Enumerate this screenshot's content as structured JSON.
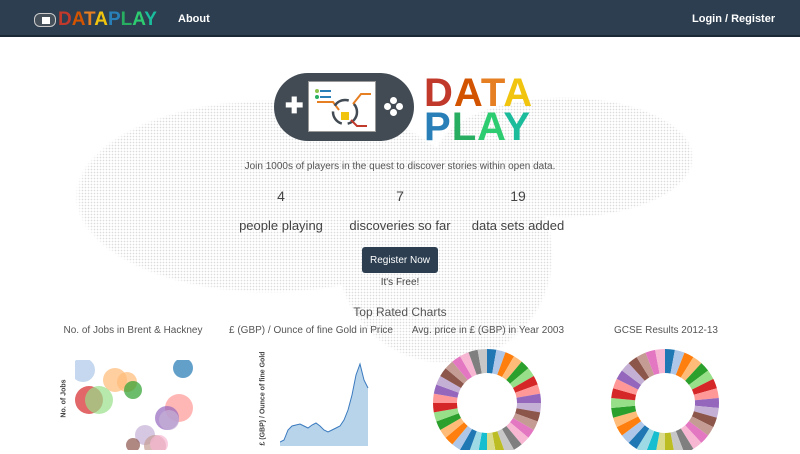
{
  "nav": {
    "brand": [
      "D",
      "A",
      "T",
      "A",
      "P",
      "L",
      "A",
      "Y"
    ],
    "about": "About",
    "login": "Login / Register"
  },
  "brand_colors": [
    "#c0392b",
    "#d35400",
    "#e67e22",
    "#f1c40f",
    "#2980b9",
    "#27ae60",
    "#2ecc71",
    "#1abc9c"
  ],
  "hero": {
    "logo_top": "DATA",
    "logo_bottom": "PLAY",
    "tagline": "Join 1000s of players in the quest to discover stories within open data."
  },
  "stats": [
    {
      "value": "4",
      "label": "people playing"
    },
    {
      "value": "7",
      "label": "discoveries so far"
    },
    {
      "value": "19",
      "label": "data sets added"
    }
  ],
  "register": {
    "label": "Register Now",
    "note": "It's Free!"
  },
  "top_rated": {
    "title": "Top Rated Charts",
    "charts": [
      {
        "title": "No. of Jobs in Brent & Hackney",
        "ylabel": "No. of Jobs"
      },
      {
        "title": "£ (GBP) / Ounce of fine Gold in Price",
        "ylabel": "£ (GBP) / Ounce of fine Gold"
      },
      {
        "title": "Avg. price in £ (GBP) in Year 2003"
      },
      {
        "title": "GCSE Results 2012-13"
      }
    ]
  },
  "palette": [
    "#1f77b4",
    "#aec7e8",
    "#ff7f0e",
    "#ffbb78",
    "#2ca02c",
    "#98df8a",
    "#d62728",
    "#ff9896",
    "#9467bd",
    "#c5b0d5",
    "#8c564b",
    "#c49c94",
    "#e377c2",
    "#f7b6d2",
    "#7f7f7f",
    "#c7c7c7",
    "#bcbd22",
    "#dbdb8d",
    "#17becf",
    "#9edae5"
  ]
}
